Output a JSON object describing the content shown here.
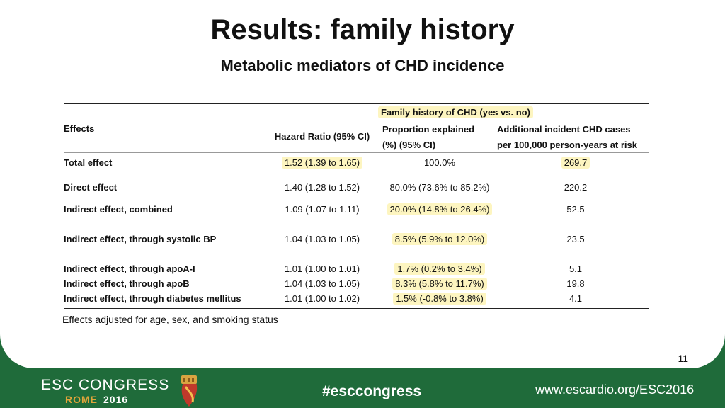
{
  "title": "Results: family history",
  "subtitle": "Metabolic mediators of CHD incidence",
  "table": {
    "group_header": "Family history of CHD (yes vs. no)",
    "col_effects": "Effects",
    "col_hr": "Hazard Ratio (95% CI)",
    "col_prop_line1": "Proportion explained",
    "col_prop_line2": "(%) (95% CI)",
    "col_add_line1": "Additional incident CHD cases",
    "col_add_line2": "per 100,000 person-years at risk",
    "rows": [
      {
        "effect": "Total effect",
        "hr": "1.52 (1.39 to 1.65)",
        "prop": "100.0%",
        "add": "269.7"
      },
      {
        "effect": "Direct effect",
        "hr": "1.40 (1.28 to 1.52)",
        "prop": "80.0% (73.6% to 85.2%)",
        "add": "220.2"
      },
      {
        "effect": "Indirect effect, combined",
        "hr": "1.09 (1.07 to 1.11)",
        "prop": "20.0% (14.8% to 26.4%)",
        "add": "52.5"
      },
      {
        "effect": "Indirect effect, through systolic BP",
        "hr": "1.04 (1.03 to 1.05)",
        "prop": "8.5% (5.9% to 12.0%)",
        "add": "23.5"
      },
      {
        "effect": "Indirect effect, through apoA-I",
        "hr": "1.01 (1.00 to 1.01)",
        "prop": "1.7% (0.2% to 3.4%)",
        "add": "5.1"
      },
      {
        "effect": "Indirect effect, through apoB",
        "hr": "1.04 (1.03 to 1.05)",
        "prop": "8.3% (5.8% to 11.7%)",
        "add": "19.8"
      },
      {
        "effect": "Indirect effect, through diabetes mellitus",
        "hr": "1.01 (1.00 to 1.02)",
        "prop": "1.5% (-0.8% to 3.8%)",
        "add": "4.1"
      }
    ]
  },
  "note": "Effects adjusted for age, sex, and smoking status",
  "page_number": "11",
  "footer": {
    "congress": "ESC CONGRESS",
    "city": "ROME",
    "year": "2016",
    "hashtag": "#esccongress",
    "url": "www.escardio.org/ESC2016"
  },
  "colors": {
    "footer_green": "#1f6b3a",
    "highlight": "#fdf5c0",
    "rome_gold": "#e2a53a"
  },
  "icons": {
    "emblem": "esc-rome-emblem-icon"
  }
}
